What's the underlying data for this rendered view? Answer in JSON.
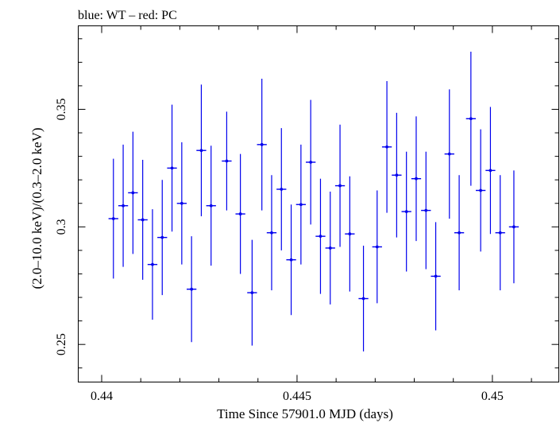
{
  "header": {
    "title": "blue: WT – red: PC"
  },
  "chart_data": {
    "type": "scatter",
    "title": "blue: WT – red: PC",
    "xlabel": "Time Since 57901.0 MJD (days)",
    "ylabel": "(2.0–10.0 keV)/(0.3–2.0 keV)",
    "xlim": [
      0.4394,
      0.4517
    ],
    "ylim": [
      0.234,
      0.3855
    ],
    "x_ticks": [
      {
        "value": 0.44,
        "label": "0.44"
      },
      {
        "value": 0.445,
        "label": "0.445"
      },
      {
        "value": 0.45,
        "label": "0.45"
      }
    ],
    "y_ticks": [
      {
        "value": 0.25,
        "label": "0.25"
      },
      {
        "value": 0.3,
        "label": "0.3"
      },
      {
        "value": 0.35,
        "label": "0.35"
      }
    ],
    "grid": false,
    "series": [
      {
        "color": "#0000ee",
        "x_halfwidth": 0.000125,
        "points": [
          {
            "x": 0.4403,
            "y": 0.3035,
            "yerr": 0.0255
          },
          {
            "x": 0.44055,
            "y": 0.309,
            "yerr": 0.026
          },
          {
            "x": 0.4408,
            "y": 0.3145,
            "yerr": 0.026
          },
          {
            "x": 0.44105,
            "y": 0.303,
            "yerr": 0.0255
          },
          {
            "x": 0.4413,
            "y": 0.284,
            "yerr": 0.0235
          },
          {
            "x": 0.44155,
            "y": 0.2955,
            "yerr": 0.0245
          },
          {
            "x": 0.4418,
            "y": 0.325,
            "yerr": 0.027
          },
          {
            "x": 0.44205,
            "y": 0.31,
            "yerr": 0.026
          },
          {
            "x": 0.4423,
            "y": 0.2735,
            "yerr": 0.0225
          },
          {
            "x": 0.44255,
            "y": 0.3325,
            "yerr": 0.028
          },
          {
            "x": 0.4428,
            "y": 0.309,
            "yerr": 0.0255
          },
          {
            "x": 0.4432,
            "y": 0.328,
            "yerr": 0.021
          },
          {
            "x": 0.44355,
            "y": 0.3055,
            "yerr": 0.0255
          },
          {
            "x": 0.44385,
            "y": 0.272,
            "yerr": 0.0225
          },
          {
            "x": 0.4441,
            "y": 0.335,
            "yerr": 0.028
          },
          {
            "x": 0.44435,
            "y": 0.2975,
            "yerr": 0.0245
          },
          {
            "x": 0.4446,
            "y": 0.316,
            "yerr": 0.026
          },
          {
            "x": 0.44485,
            "y": 0.286,
            "yerr": 0.0235
          },
          {
            "x": 0.4451,
            "y": 0.3095,
            "yerr": 0.0255
          },
          {
            "x": 0.44535,
            "y": 0.3275,
            "yerr": 0.0265
          },
          {
            "x": 0.4456,
            "y": 0.296,
            "yerr": 0.0245
          },
          {
            "x": 0.44585,
            "y": 0.291,
            "yerr": 0.024
          },
          {
            "x": 0.4461,
            "y": 0.3175,
            "yerr": 0.026
          },
          {
            "x": 0.44635,
            "y": 0.297,
            "yerr": 0.0245
          },
          {
            "x": 0.4467,
            "y": 0.2695,
            "yerr": 0.0225
          },
          {
            "x": 0.44705,
            "y": 0.2915,
            "yerr": 0.024
          },
          {
            "x": 0.4473,
            "y": 0.334,
            "yerr": 0.028
          },
          {
            "x": 0.44755,
            "y": 0.322,
            "yerr": 0.0265
          },
          {
            "x": 0.4478,
            "y": 0.3065,
            "yerr": 0.0255
          },
          {
            "x": 0.44805,
            "y": 0.3205,
            "yerr": 0.0265
          },
          {
            "x": 0.4483,
            "y": 0.307,
            "yerr": 0.025
          },
          {
            "x": 0.44855,
            "y": 0.279,
            "yerr": 0.023
          },
          {
            "x": 0.4489,
            "y": 0.331,
            "yerr": 0.0275
          },
          {
            "x": 0.44915,
            "y": 0.2975,
            "yerr": 0.0245
          },
          {
            "x": 0.44945,
            "y": 0.346,
            "yerr": 0.0285
          },
          {
            "x": 0.4497,
            "y": 0.3155,
            "yerr": 0.026
          },
          {
            "x": 0.44995,
            "y": 0.324,
            "yerr": 0.027
          },
          {
            "x": 0.4502,
            "y": 0.2975,
            "yerr": 0.0245
          },
          {
            "x": 0.45055,
            "y": 0.3,
            "yerr": 0.024
          }
        ]
      }
    ]
  }
}
